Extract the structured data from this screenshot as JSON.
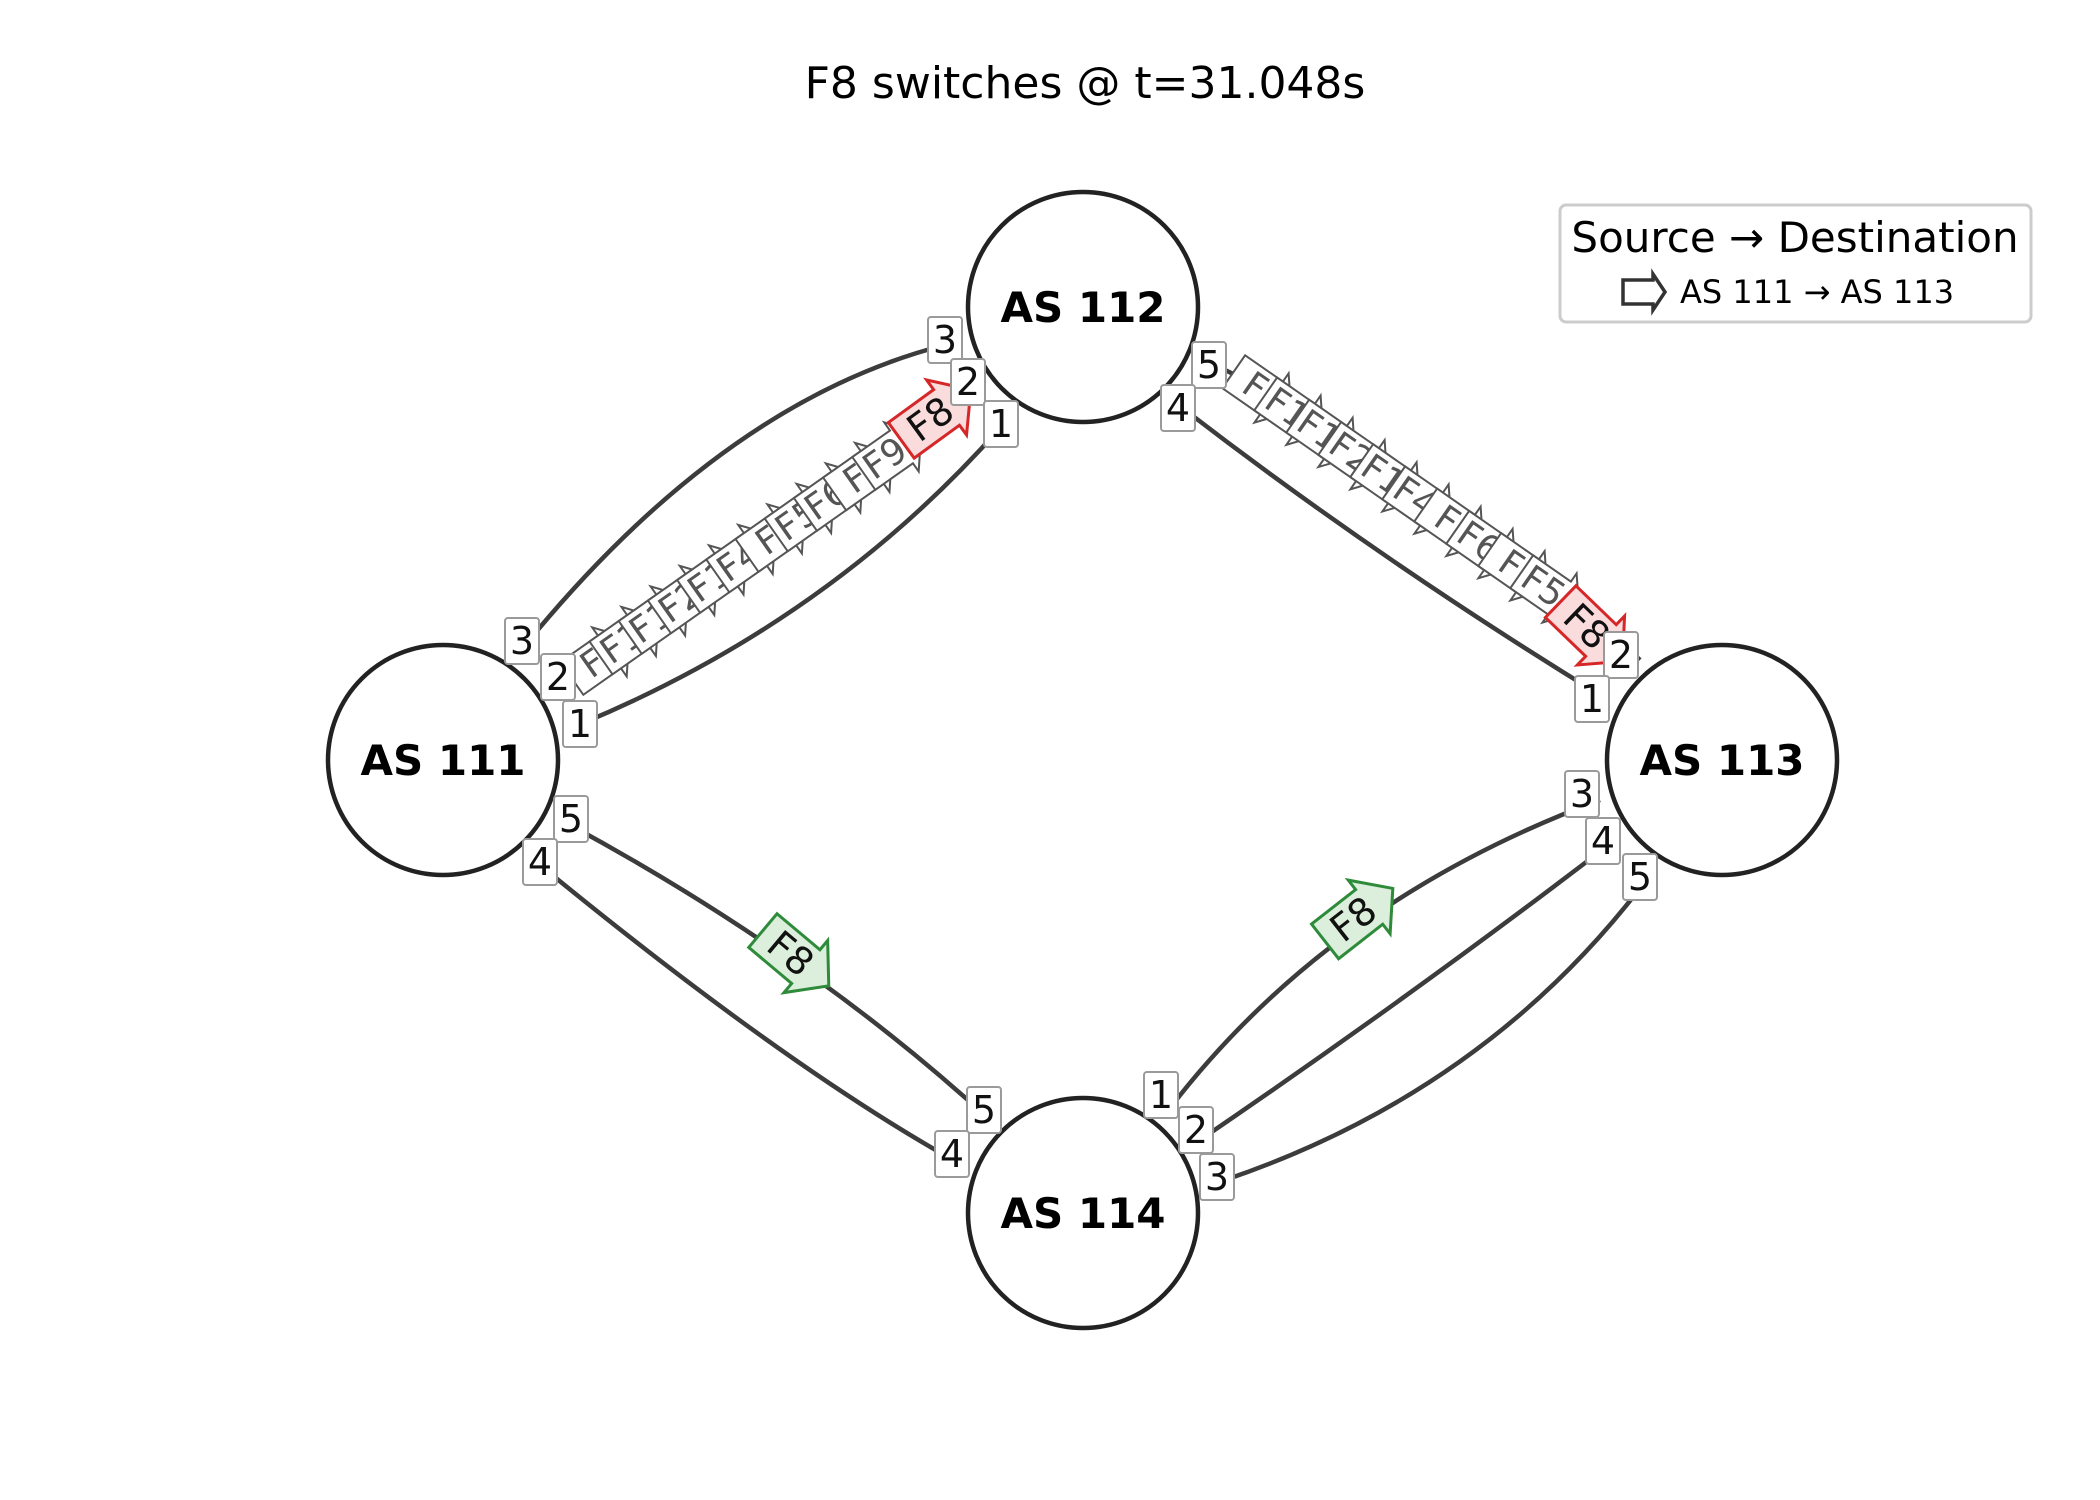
{
  "title": "F8 switches @ t=31.048s",
  "nodes": [
    {
      "id": "n111",
      "label": "AS 111"
    },
    {
      "id": "n112",
      "label": "AS 112"
    },
    {
      "id": "n113",
      "label": "AS 113"
    },
    {
      "id": "n114",
      "label": "AS 114"
    }
  ],
  "links": [
    {
      "from": "AS 111",
      "from_port": "3",
      "to": "AS 112",
      "to_port": "3"
    },
    {
      "from": "AS 111",
      "from_port": "2",
      "to": "AS 112",
      "to_port": "2"
    },
    {
      "from": "AS 111",
      "from_port": "1",
      "to": "AS 112",
      "to_port": "1"
    },
    {
      "from": "AS 112",
      "from_port": "5",
      "to": "AS 113",
      "to_port": "2"
    },
    {
      "from": "AS 112",
      "from_port": "4",
      "to": "AS 113",
      "to_port": "1"
    },
    {
      "from": "AS 111",
      "from_port": "5",
      "to": "AS 114",
      "to_port": "5"
    },
    {
      "from": "AS 111",
      "from_port": "4",
      "to": "AS 114",
      "to_port": "4"
    },
    {
      "from": "AS 114",
      "from_port": "1",
      "to": "AS 113",
      "to_port": "3"
    },
    {
      "from": "AS 114",
      "from_port": "2",
      "to": "AS 113",
      "to_port": "4"
    },
    {
      "from": "AS 114",
      "from_port": "3",
      "to": "AS 113",
      "to_port": "5"
    }
  ],
  "flows": [
    {
      "label": "F8",
      "link": "AS 111 → AS 112",
      "state": "old",
      "color": "#d62728"
    },
    {
      "label": "F8",
      "link": "AS 112 → AS 113",
      "state": "old",
      "color": "#d62728"
    },
    {
      "label": "F8",
      "link": "AS 111 → AS 114",
      "state": "new",
      "color": "#2e8b3a"
    },
    {
      "label": "F8",
      "link": "AS 114 → AS 113",
      "state": "new",
      "color": "#2e8b3a"
    }
  ],
  "ghost_flows": {
    "AS 111 → AS 112": [
      "F",
      "F1",
      "F1",
      "F2",
      "F1",
      "F4",
      "F",
      "F5",
      "F6",
      "F",
      "F9"
    ],
    "AS 112 → AS 113": [
      "F",
      "F1",
      "F1",
      "F2",
      "F1",
      "F4",
      "F",
      "F6",
      "F",
      "F5"
    ]
  },
  "legend": {
    "title": "Source → Destination",
    "entries": [
      {
        "label": "AS 111 → AS 113",
        "icon": "arrow-outline-icon"
      }
    ]
  }
}
